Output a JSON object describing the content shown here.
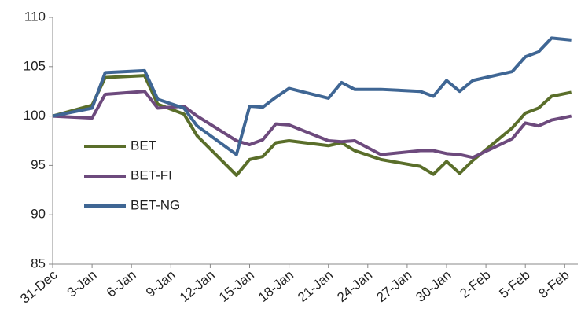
{
  "chart_data": {
    "type": "line",
    "x": [
      0,
      3,
      4,
      7,
      8,
      10,
      11,
      14,
      15,
      16,
      17,
      18,
      21,
      22,
      23,
      25,
      28,
      29,
      30,
      31,
      32,
      35,
      36,
      37,
      38,
      39.5
    ],
    "series": [
      {
        "name": "BET",
        "color": "#5a6e2a",
        "values": [
          100,
          101.1,
          103.9,
          104.1,
          101.2,
          100.2,
          98,
          94,
          95.6,
          95.9,
          97.3,
          97.5,
          97,
          97.3,
          96.5,
          95.6,
          94.9,
          94.1,
          95.4,
          94.2,
          95.5,
          98.8,
          100.3,
          100.8,
          102,
          102.4
        ]
      },
      {
        "name": "BET-FI",
        "color": "#6d4a7d",
        "values": [
          100,
          99.8,
          102.2,
          102.5,
          100.8,
          101,
          100,
          97.5,
          97.1,
          97.6,
          99.2,
          99.1,
          97.5,
          97.4,
          97.5,
          96.1,
          96.5,
          96.5,
          96.2,
          96.1,
          95.8,
          97.7,
          99.3,
          99,
          99.6,
          100
        ]
      },
      {
        "name": "BET-NG",
        "color": "#3f6694",
        "values": [
          100,
          100.8,
          104.4,
          104.6,
          101.7,
          100.8,
          99,
          96.1,
          101,
          100.9,
          101.9,
          102.8,
          101.8,
          103.4,
          102.7,
          102.7,
          102.5,
          102,
          103.6,
          102.5,
          103.6,
          104.5,
          106,
          106.5,
          107.9,
          107.7
        ]
      }
    ],
    "xlim": [
      0,
      40
    ],
    "xticks": [
      {
        "value": 0,
        "label": "31-Dec"
      },
      {
        "value": 3,
        "label": "3-Jan"
      },
      {
        "value": 6,
        "label": "6-Jan"
      },
      {
        "value": 9,
        "label": "9-Jan"
      },
      {
        "value": 12,
        "label": "12-Jan"
      },
      {
        "value": 15,
        "label": "15-Jan"
      },
      {
        "value": 18,
        "label": "18-Jan"
      },
      {
        "value": 21,
        "label": "21-Jan"
      },
      {
        "value": 24,
        "label": "24-Jan"
      },
      {
        "value": 27,
        "label": "27-Jan"
      },
      {
        "value": 30,
        "label": "30-Jan"
      },
      {
        "value": 33,
        "label": "2-Feb"
      },
      {
        "value": 36,
        "label": "5-Feb"
      },
      {
        "value": 39,
        "label": "8-Feb"
      }
    ],
    "ylim": [
      85,
      110
    ],
    "yticks": [
      85,
      90,
      95,
      100,
      105,
      110
    ],
    "grid": false,
    "legend": "left"
  }
}
